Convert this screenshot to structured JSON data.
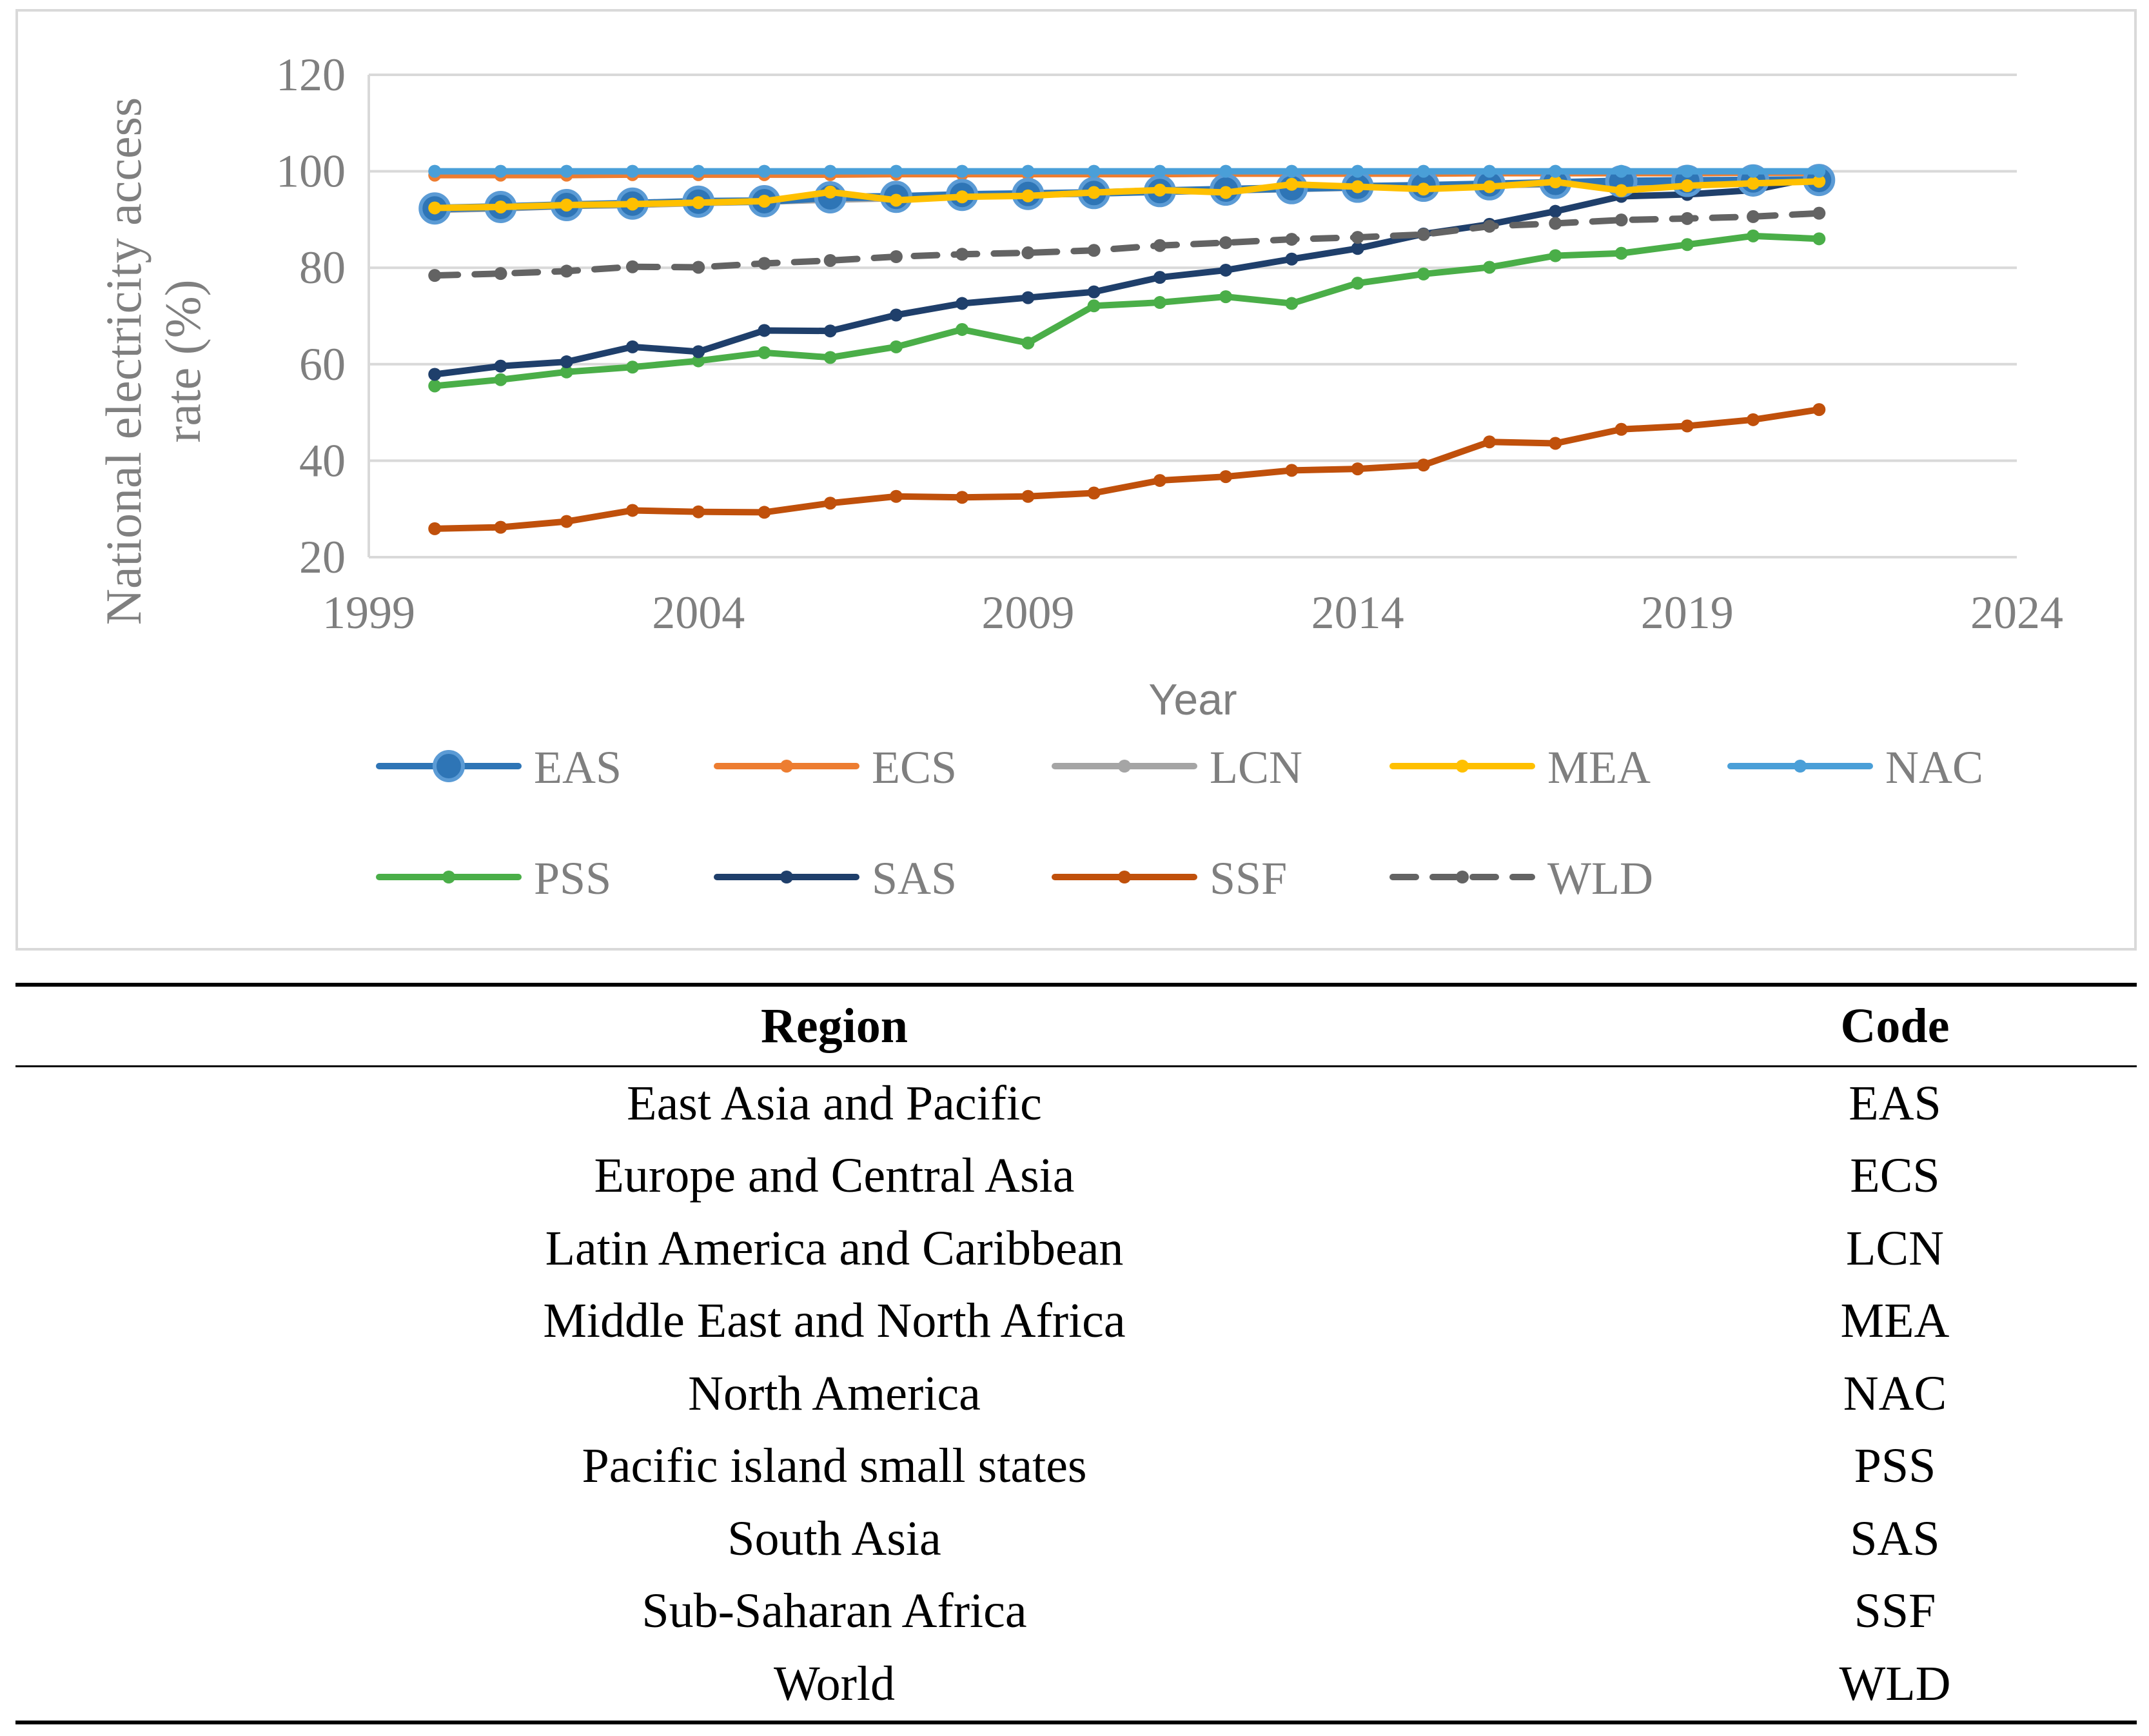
{
  "chart_data": {
    "type": "line",
    "title": "",
    "xlabel": "Year",
    "ylabel": "National electricity access rate (%)",
    "xlim": [
      1999,
      2024
    ],
    "ylim": [
      20,
      120
    ],
    "xticks": [
      1999,
      2004,
      2009,
      2014,
      2019,
      2024
    ],
    "yticks": [
      20,
      40,
      60,
      80,
      100,
      120
    ],
    "grid": "horizontal",
    "legend_position": "bottom",
    "x": [
      2000,
      2001,
      2002,
      2003,
      2004,
      2005,
      2006,
      2007,
      2008,
      2009,
      2010,
      2011,
      2012,
      2013,
      2014,
      2015,
      2016,
      2017,
      2018,
      2019,
      2020,
      2021
    ],
    "series": [
      {
        "name": "EAS",
        "color": "#2e75b6",
        "style": "solid",
        "marker": "large-circle",
        "values": [
          92.3,
          92.6,
          93.0,
          93.3,
          93.7,
          93.8,
          94.6,
          94.7,
          95.1,
          95.3,
          95.5,
          95.9,
          96.2,
          96.5,
          96.8,
          97.0,
          97.3,
          97.6,
          97.9,
          98.0,
          98.1,
          98.2
        ]
      },
      {
        "name": "ECS",
        "color": "#ed7d31",
        "style": "solid",
        "marker": "small-circle",
        "values": [
          99.2,
          99.2,
          99.2,
          99.3,
          99.3,
          99.3,
          99.3,
          99.4,
          99.4,
          99.4,
          99.4,
          99.4,
          99.5,
          99.5,
          99.5,
          99.5,
          99.6,
          99.6,
          99.6,
          99.6,
          99.7,
          99.7
        ]
      },
      {
        "name": "LCN",
        "color": "#a5a5a5",
        "style": "solid",
        "marker": "small-circle",
        "values": [
          92.0,
          92.3,
          92.8,
          93.0,
          93.4,
          93.7,
          94.1,
          94.4,
          94.8,
          95.1,
          95.4,
          95.7,
          96.0,
          96.3,
          96.6,
          96.9,
          97.1,
          97.3,
          97.5,
          97.7,
          97.9,
          98.0
        ]
      },
      {
        "name": "MEA",
        "color": "#ffc000",
        "style": "solid",
        "marker": "small-circle",
        "values": [
          92.4,
          92.6,
          93.0,
          93.2,
          93.5,
          93.8,
          95.7,
          94.0,
          94.7,
          94.9,
          95.6,
          96.1,
          95.6,
          97.3,
          96.8,
          96.3,
          96.8,
          97.8,
          96.0,
          97.0,
          97.5,
          97.9
        ]
      },
      {
        "name": "NAC",
        "color": "#4a9fd8",
        "style": "solid",
        "marker": "small-circle",
        "values": [
          100,
          100,
          100,
          100,
          100,
          100,
          100,
          100,
          100,
          100,
          100,
          100,
          100,
          100,
          100,
          100,
          100,
          100,
          100,
          100,
          100,
          100
        ]
      },
      {
        "name": "PSS",
        "color": "#4aae48",
        "style": "solid",
        "marker": "small-circle",
        "values": [
          55.5,
          56.8,
          58.4,
          59.4,
          60.7,
          62.4,
          61.4,
          63.6,
          67.2,
          64.4,
          72.1,
          72.8,
          74.0,
          72.6,
          76.8,
          78.7,
          80.1,
          82.5,
          83.0,
          84.8,
          86.6,
          86.0
        ]
      },
      {
        "name": "SAS",
        "color": "#1f3f6b",
        "style": "solid",
        "marker": "small-circle",
        "values": [
          57.9,
          59.6,
          60.5,
          63.6,
          62.6,
          67.0,
          66.9,
          70.2,
          72.6,
          73.8,
          75.0,
          78.0,
          79.5,
          81.8,
          84.0,
          87.0,
          89.0,
          91.7,
          94.8,
          95.2,
          96.1,
          98.9
        ]
      },
      {
        "name": "SSF",
        "color": "#c0500b",
        "style": "solid",
        "marker": "small-circle",
        "values": [
          25.9,
          26.2,
          27.4,
          29.7,
          29.4,
          29.3,
          31.2,
          32.6,
          32.4,
          32.6,
          33.3,
          35.9,
          36.7,
          38.0,
          38.3,
          39.1,
          43.9,
          43.6,
          46.5,
          47.2,
          48.5,
          50.6
        ]
      },
      {
        "name": "WLD",
        "color": "#636363",
        "style": "dashed",
        "marker": "small-circle",
        "values": [
          78.4,
          78.8,
          79.3,
          80.2,
          80.1,
          80.9,
          81.5,
          82.3,
          82.8,
          83.1,
          83.6,
          84.6,
          85.2,
          85.9,
          86.3,
          86.9,
          88.6,
          89.2,
          89.9,
          90.2,
          90.6,
          91.3
        ]
      }
    ]
  },
  "table": {
    "headers": {
      "region": "Region",
      "code": "Code"
    },
    "rows": [
      {
        "region": "East Asia and Pacific",
        "code": "EAS"
      },
      {
        "region": "Europe and Central Asia",
        "code": "ECS"
      },
      {
        "region": "Latin America and Caribbean",
        "code": "LCN"
      },
      {
        "region": "Middle East and North Africa",
        "code": "MEA"
      },
      {
        "region": "North America",
        "code": "NAC"
      },
      {
        "region": "Pacific island small states",
        "code": "PSS"
      },
      {
        "region": "South Asia",
        "code": "SAS"
      },
      {
        "region": "Sub-Saharan Africa",
        "code": "SSF"
      },
      {
        "region": "World",
        "code": "WLD"
      }
    ]
  }
}
